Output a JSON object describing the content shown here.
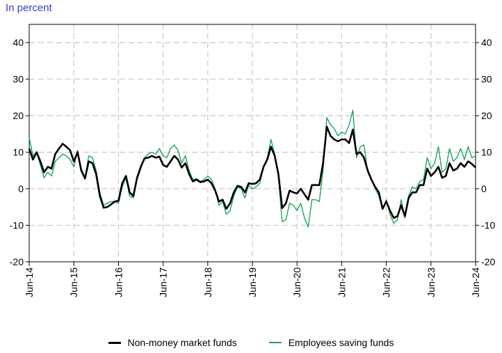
{
  "unit_label": "In percent",
  "colors": {
    "non_mmf": "#000000",
    "employees": "#1fa45c",
    "grid": "#c8c8c8",
    "unit_label": "#3a3acb"
  },
  "chart_data": {
    "type": "line",
    "title": "",
    "ylabel": "In percent",
    "xlabel": "",
    "ylim": [
      -20,
      45
    ],
    "yticks": [
      -20,
      -10,
      0,
      10,
      20,
      30,
      40
    ],
    "xlim": [
      "2014-06",
      "2024-06"
    ],
    "x_tick_labels": [
      "Jun-14",
      "Jun-15",
      "Jun-16",
      "Jun-17",
      "Jun-18",
      "Jun-19",
      "Jun-20",
      "Jun-21",
      "Jun-22",
      "Jun-23",
      "Jun-24"
    ],
    "grid": true,
    "legend_position": "bottom",
    "series": [
      {
        "name": "Non-money market funds",
        "color": "#000000",
        "points": [
          [
            "2014-06",
            11
          ],
          [
            "2014-07",
            8
          ],
          [
            "2014-08",
            10
          ],
          [
            "2014-09",
            7.5
          ],
          [
            "2014-10",
            4.5
          ],
          [
            "2014-11",
            6
          ],
          [
            "2014-12",
            5.5
          ],
          [
            "2015-01",
            9.5
          ],
          [
            "2015-02",
            11
          ],
          [
            "2015-03",
            12.3
          ],
          [
            "2015-04",
            11.5
          ],
          [
            "2015-05",
            10.5
          ],
          [
            "2015-06",
            7.5
          ],
          [
            "2015-07",
            10
          ],
          [
            "2015-08",
            5
          ],
          [
            "2015-09",
            2.8
          ],
          [
            "2015-10",
            7.5
          ],
          [
            "2015-11",
            7
          ],
          [
            "2015-12",
            4
          ],
          [
            "2016-01",
            -2
          ],
          [
            "2016-02",
            -5.2
          ],
          [
            "2016-03",
            -5
          ],
          [
            "2016-04",
            -4.3
          ],
          [
            "2016-05",
            -3.5
          ],
          [
            "2016-06",
            -3.3
          ],
          [
            "2016-07",
            1.5
          ],
          [
            "2016-08",
            3.5
          ],
          [
            "2016-09",
            -1
          ],
          [
            "2016-10",
            -2
          ],
          [
            "2016-11",
            3
          ],
          [
            "2016-12",
            6
          ],
          [
            "2017-01",
            8.3
          ],
          [
            "2017-02",
            8.5
          ],
          [
            "2017-03",
            9
          ],
          [
            "2017-04",
            8.5
          ],
          [
            "2017-05",
            8.8
          ],
          [
            "2017-06",
            6.5
          ],
          [
            "2017-07",
            6
          ],
          [
            "2017-08",
            7.5
          ],
          [
            "2017-09",
            9
          ],
          [
            "2017-10",
            8
          ],
          [
            "2017-11",
            5.8
          ],
          [
            "2017-12",
            7
          ],
          [
            "2018-01",
            4
          ],
          [
            "2018-02",
            2
          ],
          [
            "2018-03",
            2.5
          ],
          [
            "2018-04",
            1.8
          ],
          [
            "2018-05",
            2
          ],
          [
            "2018-06",
            2.5
          ],
          [
            "2018-07",
            1.5
          ],
          [
            "2018-08",
            -0.5
          ],
          [
            "2018-09",
            -3.5
          ],
          [
            "2018-10",
            -3
          ],
          [
            "2018-11",
            -5.5
          ],
          [
            "2018-12",
            -4
          ],
          [
            "2019-01",
            -1
          ],
          [
            "2019-02",
            0.8
          ],
          [
            "2019-03",
            0.5
          ],
          [
            "2019-04",
            -1
          ],
          [
            "2019-05",
            1.5
          ],
          [
            "2019-06",
            1.3
          ],
          [
            "2019-07",
            1.5
          ],
          [
            "2019-08",
            2.5
          ],
          [
            "2019-09",
            6
          ],
          [
            "2019-10",
            8
          ],
          [
            "2019-11",
            11.5
          ],
          [
            "2019-12",
            9
          ],
          [
            "2020-01",
            4
          ],
          [
            "2020-02",
            -5.3
          ],
          [
            "2020-03",
            -4
          ],
          [
            "2020-04",
            -0.5
          ],
          [
            "2020-05",
            -1
          ],
          [
            "2020-06",
            -1.3
          ],
          [
            "2020-07",
            0
          ],
          [
            "2020-08",
            -1.5
          ],
          [
            "2020-09",
            -3
          ],
          [
            "2020-10",
            1
          ],
          [
            "2020-11",
            1
          ],
          [
            "2020-12",
            1
          ],
          [
            "2021-01",
            7
          ],
          [
            "2021-02",
            17
          ],
          [
            "2021-03",
            14.5
          ],
          [
            "2021-04",
            13.5
          ],
          [
            "2021-05",
            13
          ],
          [
            "2021-06",
            13.5
          ],
          [
            "2021-07",
            13.5
          ],
          [
            "2021-08",
            12.5
          ],
          [
            "2021-09",
            16.2
          ],
          [
            "2021-10",
            9.5
          ],
          [
            "2021-11",
            10
          ],
          [
            "2021-12",
            8.5
          ],
          [
            "2022-01",
            5
          ],
          [
            "2022-02",
            2.5
          ],
          [
            "2022-03",
            0.5
          ],
          [
            "2022-04",
            -1
          ],
          [
            "2022-05",
            -5.5
          ],
          [
            "2022-06",
            -3.5
          ],
          [
            "2022-07",
            -6
          ],
          [
            "2022-08",
            -8
          ],
          [
            "2022-09",
            -7.5
          ],
          [
            "2022-10",
            -4.5
          ],
          [
            "2022-11",
            -7.5
          ],
          [
            "2022-12",
            -2.5
          ],
          [
            "2023-01",
            -1
          ],
          [
            "2023-02",
            -1
          ],
          [
            "2023-03",
            1
          ],
          [
            "2023-04",
            1
          ],
          [
            "2023-05",
            5.5
          ],
          [
            "2023-06",
            3.5
          ],
          [
            "2023-07",
            4.5
          ],
          [
            "2023-08",
            6
          ],
          [
            "2023-09",
            3
          ],
          [
            "2023-10",
            3.5
          ],
          [
            "2023-11",
            7
          ],
          [
            "2023-12",
            5
          ],
          [
            "2024-01",
            5.5
          ],
          [
            "2024-02",
            7
          ],
          [
            "2024-03",
            6
          ],
          [
            "2024-04",
            7.5
          ],
          [
            "2024-05",
            6.8
          ],
          [
            "2024-06",
            5.8
          ]
        ]
      },
      {
        "name": "Employees saving funds",
        "color": "#1fa45c",
        "points": [
          [
            "2014-06",
            14
          ],
          [
            "2014-07",
            9
          ],
          [
            "2014-08",
            10
          ],
          [
            "2014-09",
            6.5
          ],
          [
            "2014-10",
            3
          ],
          [
            "2014-11",
            4.5
          ],
          [
            "2014-12",
            3.5
          ],
          [
            "2015-01",
            7.5
          ],
          [
            "2015-02",
            8.5
          ],
          [
            "2015-03",
            9.5
          ],
          [
            "2015-04",
            9
          ],
          [
            "2015-05",
            8
          ],
          [
            "2015-06",
            6
          ],
          [
            "2015-07",
            10.5
          ],
          [
            "2015-08",
            5.5
          ],
          [
            "2015-09",
            3
          ],
          [
            "2015-10",
            9
          ],
          [
            "2015-11",
            8.5
          ],
          [
            "2015-12",
            5
          ],
          [
            "2016-01",
            -1
          ],
          [
            "2016-02",
            -4.5
          ],
          [
            "2016-03",
            -4
          ],
          [
            "2016-04",
            -3.5
          ],
          [
            "2016-05",
            -3.5
          ],
          [
            "2016-06",
            -4
          ],
          [
            "2016-07",
            0.5
          ],
          [
            "2016-08",
            3
          ],
          [
            "2016-09",
            -2
          ],
          [
            "2016-10",
            -2.5
          ],
          [
            "2016-11",
            2.5
          ],
          [
            "2016-12",
            5.5
          ],
          [
            "2017-01",
            8.5
          ],
          [
            "2017-02",
            9.5
          ],
          [
            "2017-03",
            10
          ],
          [
            "2017-04",
            9.5
          ],
          [
            "2017-05",
            11
          ],
          [
            "2017-06",
            9
          ],
          [
            "2017-07",
            8.5
          ],
          [
            "2017-08",
            11
          ],
          [
            "2017-09",
            12
          ],
          [
            "2017-10",
            10.5
          ],
          [
            "2017-11",
            7
          ],
          [
            "2017-12",
            9
          ],
          [
            "2018-01",
            5
          ],
          [
            "2018-02",
            2.5
          ],
          [
            "2018-03",
            2.8
          ],
          [
            "2018-04",
            2
          ],
          [
            "2018-05",
            2.5
          ],
          [
            "2018-06",
            3.5
          ],
          [
            "2018-07",
            2.5
          ],
          [
            "2018-08",
            0
          ],
          [
            "2018-09",
            -4.5
          ],
          [
            "2018-10",
            -3.5
          ],
          [
            "2018-11",
            -7
          ],
          [
            "2018-12",
            -6
          ],
          [
            "2019-01",
            -2
          ],
          [
            "2019-02",
            0.5
          ],
          [
            "2019-03",
            0
          ],
          [
            "2019-04",
            -2.5
          ],
          [
            "2019-05",
            1
          ],
          [
            "2019-06",
            0
          ],
          [
            "2019-07",
            0.5
          ],
          [
            "2019-08",
            1.5
          ],
          [
            "2019-09",
            6
          ],
          [
            "2019-10",
            8.5
          ],
          [
            "2019-11",
            13.5
          ],
          [
            "2019-12",
            9.5
          ],
          [
            "2020-01",
            3
          ],
          [
            "2020-02",
            -9
          ],
          [
            "2020-03",
            -8.5
          ],
          [
            "2020-04",
            -4
          ],
          [
            "2020-05",
            -4.5
          ],
          [
            "2020-06",
            -6
          ],
          [
            "2020-07",
            -4
          ],
          [
            "2020-08",
            -8
          ],
          [
            "2020-09",
            -10.5
          ],
          [
            "2020-10",
            -3
          ],
          [
            "2020-11",
            -3
          ],
          [
            "2020-12",
            -3.5
          ],
          [
            "2021-01",
            5
          ],
          [
            "2021-02",
            19.5
          ],
          [
            "2021-03",
            17.5
          ],
          [
            "2021-04",
            16.5
          ],
          [
            "2021-05",
            14.5
          ],
          [
            "2021-06",
            15.5
          ],
          [
            "2021-07",
            15
          ],
          [
            "2021-08",
            17.5
          ],
          [
            "2021-09",
            21.5
          ],
          [
            "2021-10",
            8.5
          ],
          [
            "2021-11",
            11.5
          ],
          [
            "2021-12",
            12
          ],
          [
            "2022-01",
            4.5
          ],
          [
            "2022-02",
            2.5
          ],
          [
            "2022-03",
            0
          ],
          [
            "2022-04",
            -2
          ],
          [
            "2022-05",
            -5.5
          ],
          [
            "2022-06",
            -3
          ],
          [
            "2022-07",
            -7
          ],
          [
            "2022-08",
            -9.5
          ],
          [
            "2022-09",
            -8.5
          ],
          [
            "2022-10",
            -3
          ],
          [
            "2022-11",
            -8
          ],
          [
            "2022-12",
            -2
          ],
          [
            "2023-01",
            0.5
          ],
          [
            "2023-02",
            0
          ],
          [
            "2023-03",
            2
          ],
          [
            "2023-04",
            2.5
          ],
          [
            "2023-05",
            8.5
          ],
          [
            "2023-06",
            5.5
          ],
          [
            "2023-07",
            7
          ],
          [
            "2023-08",
            11.5
          ],
          [
            "2023-09",
            4.5
          ],
          [
            "2023-10",
            5.5
          ],
          [
            "2023-11",
            11
          ],
          [
            "2023-12",
            7.5
          ],
          [
            "2024-01",
            8.5
          ],
          [
            "2024-02",
            11
          ],
          [
            "2024-03",
            8
          ],
          [
            "2024-04",
            11.5
          ],
          [
            "2024-05",
            8.5
          ],
          [
            "2024-06",
            9
          ]
        ]
      }
    ]
  }
}
